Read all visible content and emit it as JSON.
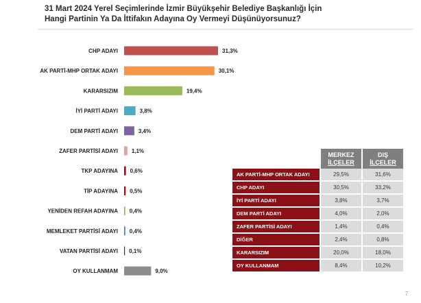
{
  "title": {
    "line1": "31 Mart 2024 Yerel Seçimlerinde İzmir Büyükşehir Belediye Başkanlığı İçin",
    "line2": "Hangi Partinin Ya Da İttifakın Adayına Oy Vermeyi Düşünüyorsunuz?"
  },
  "chart_data": {
    "type": "bar",
    "orientation": "horizontal",
    "title": "31 Mart 2024 Yerel Seçimlerinde İzmir Büyükşehir Belediye Başkanlığı İçin Hangi Partinin Ya Da İttifakın Adayına Oy Vermeyi Düşünüyorsunuz?",
    "xlim": [
      0,
      31.3
    ],
    "categories": [
      "CHP ADAYI",
      "AK PARTİ-MHP ORTAK ADAYI",
      "KARARSIZIM",
      "İYİ PARTİ ADAYI",
      "DEM PARTİ ADAYI",
      "ZAFER PARTİSİ ADAYI",
      "TKP ADAYINA",
      "TİP ADAYINA",
      "YENİDEN REFAH ADAYINA",
      "MEMLEKET PARTİSİ ADAYI",
      "VATAN PARTİSİ ADAYI",
      "OY KULLANMAM"
    ],
    "values": [
      31.3,
      30.1,
      19.4,
      3.8,
      3.4,
      1.1,
      0.6,
      0.5,
      0.4,
      0.4,
      0.1,
      9.0
    ],
    "value_labels": [
      "31,3%",
      "30,1%",
      "19,4%",
      "3,8%",
      "3,4%",
      "1,1%",
      "0,6%",
      "0,5%",
      "0,4%",
      "0,4%",
      "0,1%",
      "9,0%"
    ],
    "colors": [
      "#c0504d",
      "#f79646",
      "#9bbb59",
      "#4bacc6",
      "#8064a2",
      "#e6a0a0",
      "#c00000",
      "#c00000",
      "#9bbb59",
      "#4f81bd",
      "#8b1116",
      "#8c8c8c"
    ]
  },
  "table": {
    "headers": [
      "MERKEZ İLÇELER",
      "DIŞ İLÇELER"
    ],
    "rows": [
      {
        "label": "AK PARTİ-MHP ORTAK ADAYI",
        "merkez": "29,5%",
        "dis": "31,6%"
      },
      {
        "label": "CHP ADAYI",
        "merkez": "30,5%",
        "dis": "33,2%"
      },
      {
        "label": "İYİ PARTİ ADAYI",
        "merkez": "3,8%",
        "dis": "3,7%"
      },
      {
        "label": "DEM PARTİ ADAYI",
        "merkez": "4,0%",
        "dis": "2,0%"
      },
      {
        "label": "ZAFER PARTİSİ ADAYI",
        "merkez": "1,4%",
        "dis": "0,4%"
      },
      {
        "label": "DİĞER",
        "merkez": "2,4%",
        "dis": "0,8%"
      },
      {
        "label": "KARARSIZIM",
        "merkez": "20,0%",
        "dis": "18,0%"
      },
      {
        "label": "OY KULLANMAM",
        "merkez": "8,4%",
        "dis": "10,2%"
      }
    ]
  },
  "page_number": "7"
}
